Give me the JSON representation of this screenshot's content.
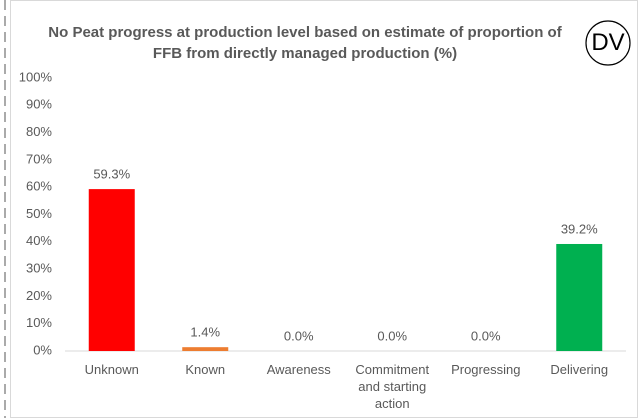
{
  "chart_data": {
    "type": "bar",
    "title": "No Peat progress at production level based on estimate of proportion of FFB from directly managed production (%)",
    "logo": "DV",
    "categories": [
      "Unknown",
      "Known",
      "Awareness",
      "Commitment and starting action",
      "Progressing",
      "Delivering"
    ],
    "values": [
      59.3,
      1.4,
      0.0,
      0.0,
      0.0,
      39.2
    ],
    "value_labels": [
      "59.3%",
      "1.4%",
      "0.0%",
      "0.0%",
      "0.0%",
      "39.2%"
    ],
    "colors": [
      "#ff0000",
      "#ed7d31",
      "#a5a5a5",
      "#a5a5a5",
      "#a5a5a5",
      "#00b050"
    ],
    "ylim": [
      0,
      100
    ],
    "yticks": [
      {
        "value": 0,
        "label": "0%"
      },
      {
        "value": 10,
        "label": "10%"
      },
      {
        "value": 20,
        "label": "20%"
      },
      {
        "value": 30,
        "label": "30%"
      },
      {
        "value": 40,
        "label": "40%"
      },
      {
        "value": 50,
        "label": "50%"
      },
      {
        "value": 60,
        "label": "60%"
      },
      {
        "value": 70,
        "label": "70%"
      },
      {
        "value": 80,
        "label": "80%"
      },
      {
        "value": 90,
        "label": "90%"
      },
      {
        "value": 100,
        "label": "100%"
      }
    ],
    "grid": false
  }
}
